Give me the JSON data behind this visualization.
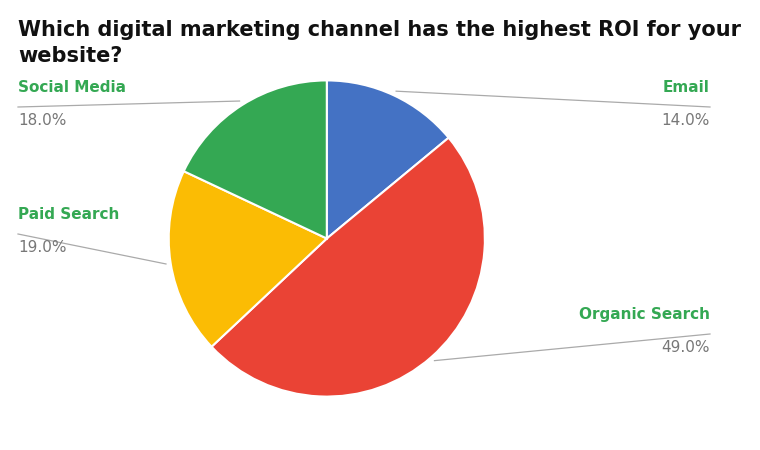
{
  "title": "Which digital marketing channel has the highest ROI for your\nwebsite?",
  "slices": [
    {
      "label": "Email",
      "value": 14.0,
      "color": "#4472C4"
    },
    {
      "label": "Organic Search",
      "value": 49.0,
      "color": "#EA4335"
    },
    {
      "label": "Paid Search",
      "value": 19.0,
      "color": "#FBBC04"
    },
    {
      "label": "Social Media",
      "value": 18.0,
      "color": "#34A853"
    }
  ],
  "label_color_name": "#34A853",
  "label_color_pct": "#777777",
  "line_color": "#AAAAAA",
  "background_color": "#FFFFFF",
  "title_fontsize": 15,
  "label_fontsize": 11,
  "pct_fontsize": 11,
  "startangle": 90
}
